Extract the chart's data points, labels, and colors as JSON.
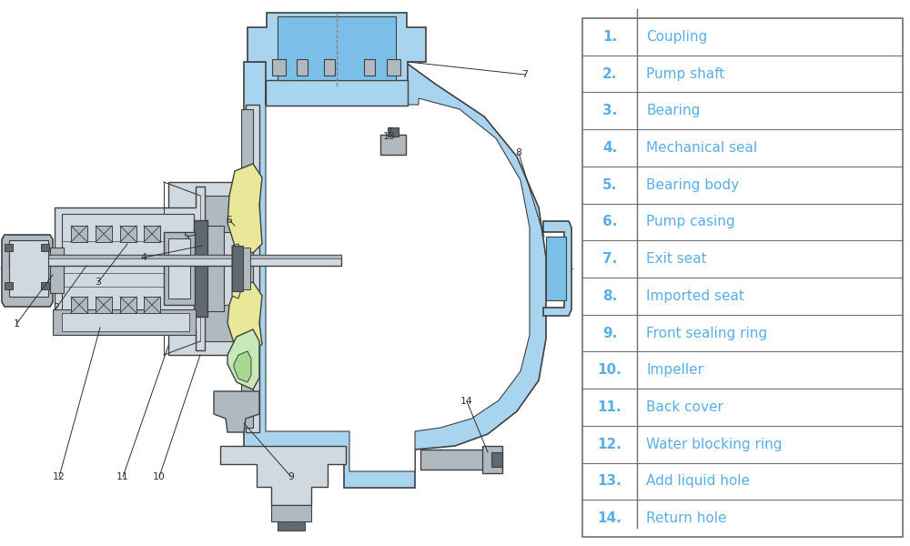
{
  "table_items": [
    [
      "1.",
      "Coupling"
    ],
    [
      "2.",
      "Pump shaft"
    ],
    [
      "3.",
      "Bearing"
    ],
    [
      "4.",
      "Mechanical seal"
    ],
    [
      "5.",
      "Bearing body"
    ],
    [
      "6.",
      "Pump casing"
    ],
    [
      "7.",
      "Exit seat"
    ],
    [
      "8.",
      "Imported seat"
    ],
    [
      "9.",
      "Front sealing ring"
    ],
    [
      "10.",
      "Impeller"
    ],
    [
      "11.",
      "Back cover"
    ],
    [
      "12.",
      "Water blocking ring"
    ],
    [
      "13.",
      "Add liquid hole"
    ],
    [
      "14.",
      "Return hole"
    ]
  ],
  "table_num_color": "#5aaee8",
  "table_text_color": "#5aaee8",
  "table_border_color": "#707070",
  "bg_color": "#ffffff",
  "blue_light": "#a8d4f0",
  "blue_mid": "#7bbfe8",
  "blue_dark": "#4da6e0",
  "gray_light": "#d0d8e0",
  "gray_mid": "#b0b8c0",
  "gray_dark": "#808890",
  "gray_darker": "#606870",
  "yellow_light": "#e8e898",
  "yellow_mid": "#d8d870",
  "green_light": "#c8e8b8",
  "green_mid": "#a8d890",
  "line_col": "#404040",
  "dash_col": "#808080"
}
